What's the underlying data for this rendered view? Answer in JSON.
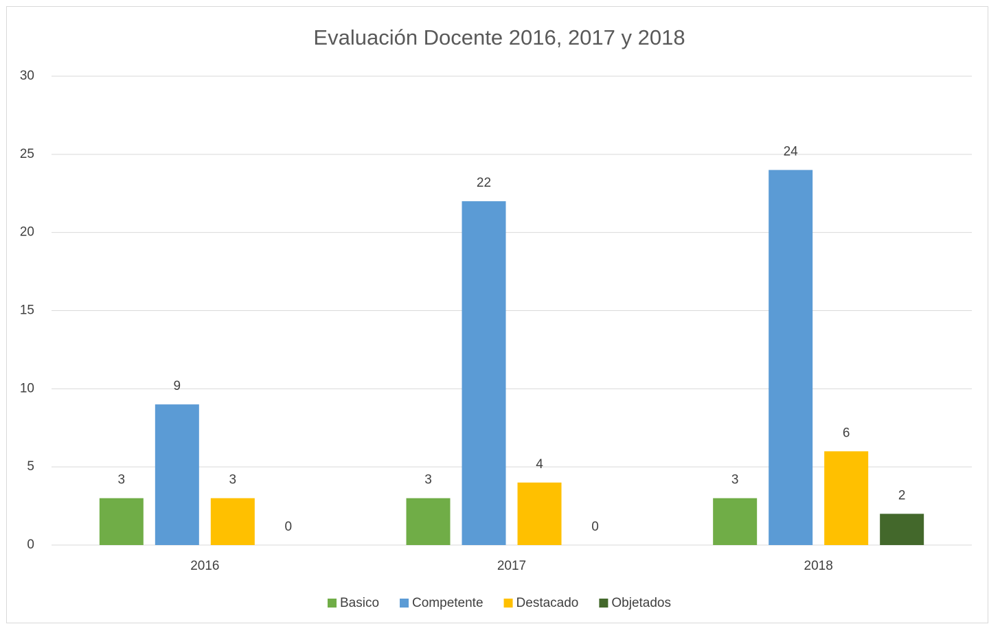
{
  "chart_data": {
    "type": "bar",
    "title": "Evaluación Docente 2016, 2017 y 2018",
    "categories": [
      "2016",
      "2017",
      "2018"
    ],
    "series": [
      {
        "name": "Basico",
        "color": "#70ad47",
        "values": [
          3,
          3,
          3
        ]
      },
      {
        "name": "Competente",
        "color": "#5b9bd5",
        "values": [
          9,
          22,
          24
        ]
      },
      {
        "name": "Destacado",
        "color": "#ffc000",
        "values": [
          3,
          4,
          6
        ]
      },
      {
        "name": "Objetados",
        "color": "#43682b",
        "values": [
          0,
          0,
          2
        ]
      }
    ],
    "ylim": [
      0,
      30
    ],
    "yticks": [
      0,
      5,
      10,
      15,
      20,
      25,
      30
    ],
    "grid": true,
    "legend": "bottom"
  }
}
